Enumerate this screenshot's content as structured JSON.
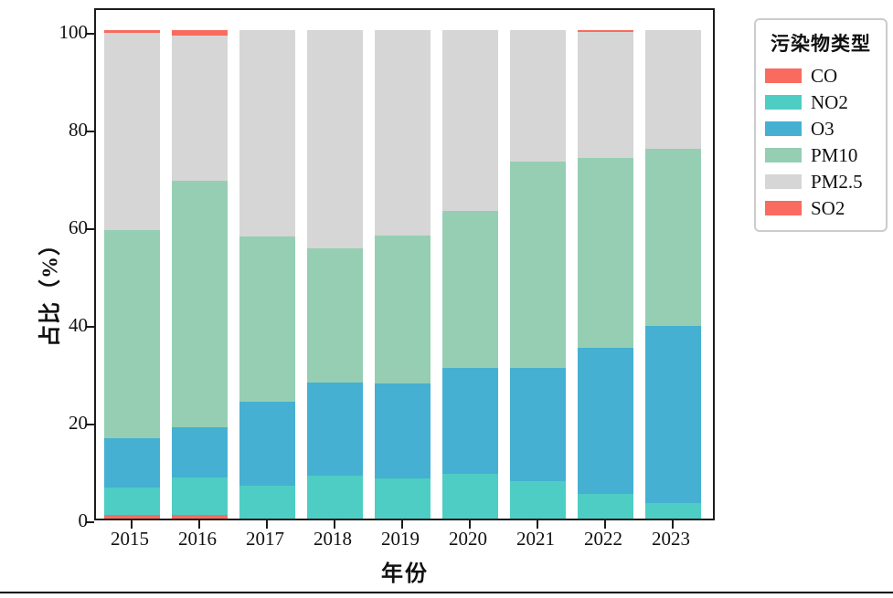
{
  "chart_data": {
    "type": "bar",
    "stacked": true,
    "title": "",
    "xlabel": "年份",
    "ylabel": "占比（%）",
    "categories": [
      "2015",
      "2016",
      "2017",
      "2018",
      "2019",
      "2020",
      "2021",
      "2022",
      "2023"
    ],
    "series": [
      {
        "name": "CO",
        "color": "#f96b5f",
        "values": [
          0.7,
          0.7,
          0,
          0,
          0,
          0,
          0,
          0,
          0
        ]
      },
      {
        "name": "NO2",
        "color": "#4ecdc4",
        "values": [
          5.7,
          7.8,
          6.8,
          8.8,
          8.2,
          9.2,
          7.6,
          5.0,
          3.2
        ]
      },
      {
        "name": "O3",
        "color": "#45b0d1",
        "values": [
          10.1,
          10.2,
          17.2,
          19.0,
          19.5,
          21.6,
          23.2,
          30.0,
          36.3
        ]
      },
      {
        "name": "PM10",
        "color": "#96ceb4",
        "values": [
          42.5,
          50.5,
          33.7,
          27.5,
          30.2,
          32.2,
          42.3,
          38.8,
          36.2
        ]
      },
      {
        "name": "PM2.5",
        "color": "#d6d6d6",
        "values": [
          40.5,
          29.6,
          42.3,
          44.7,
          42.1,
          37.0,
          26.9,
          25.9,
          24.3
        ]
      },
      {
        "name": "SO2",
        "color": "#f96b5f",
        "values": [
          0.5,
          1.2,
          0,
          0,
          0,
          0,
          0,
          0.3,
          0
        ]
      }
    ],
    "yticks": [
      0,
      20,
      40,
      60,
      80,
      100
    ],
    "ylim": [
      0,
      104.8
    ],
    "grid": false,
    "legend": {
      "title": "污染物类型",
      "position": "outside-upper-right",
      "entries": [
        "CO",
        "NO2",
        "O3",
        "PM10",
        "PM2.5",
        "SO2"
      ]
    }
  }
}
